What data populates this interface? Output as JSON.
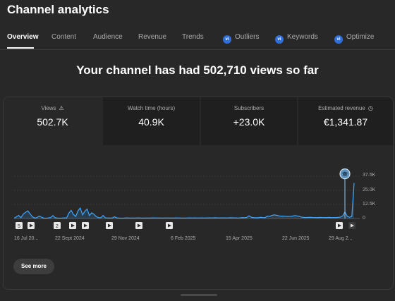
{
  "header": {
    "title": "Channel analytics"
  },
  "tabs": [
    {
      "label": "Overview",
      "active": true,
      "badge": false
    },
    {
      "label": "Content",
      "active": false,
      "badge": false
    },
    {
      "label": "Audience",
      "active": false,
      "badge": false
    },
    {
      "label": "Revenue",
      "active": false,
      "badge": false
    },
    {
      "label": "Trends",
      "active": false,
      "badge": false
    },
    {
      "label": "Outliers",
      "active": false,
      "badge": true
    },
    {
      "label": "Keywords",
      "active": false,
      "badge": true
    },
    {
      "label": "Optimize",
      "active": false,
      "badge": true
    }
  ],
  "badge_text": "vi",
  "headline": "Your channel has had 502,710 views so far",
  "metrics": [
    {
      "label": "Views",
      "value": "502.7K",
      "icon": "warning-icon",
      "active": true
    },
    {
      "label": "Watch time (hours)",
      "value": "40.9K",
      "icon": null,
      "active": false
    },
    {
      "label": "Subscribers",
      "value": "+23.0K",
      "icon": null,
      "active": false
    },
    {
      "label": "Estimated revenue",
      "value": "€1,341.87",
      "icon": "clock-icon",
      "active": false
    }
  ],
  "chart_data": {
    "type": "area",
    "series": [
      {
        "values": [
          0.3,
          1.5,
          2.8,
          0.8,
          3.9,
          5.5,
          6.8,
          4.2,
          1.6,
          0.5,
          0.8,
          2.2,
          1.1,
          0.4,
          0.3,
          0.5,
          0.9,
          2.6,
          0.7,
          0.4,
          0.3,
          0.4,
          0.6,
          0.5,
          4.8,
          7.2,
          3.6,
          1.8,
          6.8,
          9.3,
          3.2,
          6.4,
          8.4,
          2.6,
          5.1,
          3.8,
          1.6,
          0.8,
          0.7,
          2.7,
          0.6,
          0.5,
          0.4,
          0.5,
          1.5,
          0.6,
          0.4,
          0.3,
          0.3,
          0.6,
          0.5,
          0.4,
          0.5,
          0.4,
          0.6,
          0.5,
          0.4,
          0.4,
          0.5,
          0.4,
          0.5,
          0.6,
          0.5,
          0.5,
          0.5,
          0.4,
          0.5,
          0.5,
          0.5,
          0.4,
          0.5,
          0.6,
          0.5,
          0.5,
          0.4,
          0.5,
          0.5,
          0.6,
          0.5,
          0.6,
          0.5,
          0.5,
          0.6,
          0.5,
          0.5,
          0.6,
          0.6,
          0.5,
          0.7,
          0.6,
          0.5,
          0.6,
          0.6,
          0.5,
          0.6,
          0.7,
          0.6,
          0.6,
          0.5,
          0.6,
          0.8,
          0.7,
          1.0,
          2.4,
          1.1,
          0.8,
          0.7,
          0.7,
          1.1,
          0.9,
          0.8,
          2.1,
          1.9,
          2.8,
          3.2,
          2.9,
          2.4,
          2.1,
          2.2,
          2.0,
          1.8,
          1.9,
          2.1,
          2.6,
          2.3,
          1.9,
          1.2,
          1.0,
          0.9,
          1.0,
          1.1,
          0.9,
          0.9,
          0.8,
          1.0,
          0.9,
          0.9,
          0.8,
          1.0,
          0.8,
          0.9,
          0.8,
          1.0,
          1.2,
          2.3,
          5.9,
          1.9,
          1.2,
          1.8,
          31.5
        ],
        "color": "#3ea6ff"
      }
    ],
    "x_ticks": [
      "16 Jul 20...",
      "22 Sept 2024",
      "29 Nov 2024",
      "6 Feb 2025",
      "15 Apr 2025",
      "22 Jun 2025",
      "29 Aug 2..."
    ],
    "y_ticks": [
      "37.5K",
      "25.0K",
      "12.5K",
      "0"
    ],
    "ylim": [
      0,
      37.5
    ],
    "grid": true,
    "markers": [
      {
        "type": "number",
        "label": "5",
        "dark": false
      },
      {
        "type": "play",
        "label": "",
        "dark": false
      },
      {
        "type": "number",
        "label": "2",
        "dark": false
      },
      {
        "type": "play",
        "label": "",
        "dark": false
      },
      {
        "type": "play",
        "label": "",
        "dark": false
      },
      {
        "type": "play",
        "label": "",
        "dark": false
      },
      {
        "type": "play",
        "label": "",
        "dark": false
      },
      {
        "type": "play",
        "label": "",
        "dark": false
      },
      {
        "type": "play",
        "label": "",
        "dark": false
      },
      {
        "type": "play",
        "label": "",
        "dark": true
      }
    ],
    "milestone_icon": "graduation-cap-icon"
  },
  "actions": {
    "see_more": "See more"
  }
}
